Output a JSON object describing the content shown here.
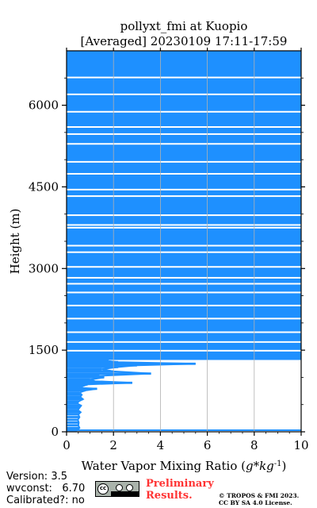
{
  "title_line1": "pollyxt_fmi at Kuopio",
  "title_line2": "[Averaged] 20230109 17:11-17:59",
  "footer": {
    "version": "Version: 3.5",
    "wvconst": "wvconst:   6.70",
    "calibrated": "Calibrated?: no",
    "preliminary_line1": "Preliminary",
    "preliminary_line2": "Results.",
    "copyright_line1": "© TROPOS & FMI 2023.",
    "copyright_line2": "CC BY SA 4.0 License.",
    "license_logo_text": "cc"
  },
  "colors": {
    "series": "#1e90ff",
    "grid": "#b0b0b0",
    "axis": "#000000"
  },
  "chart_data": {
    "type": "line",
    "xlabel": "Water Vapor Mixing Ratio ($g*kg^{-1}$)",
    "ylabel": "Height (m)",
    "xlim": [
      0,
      10
    ],
    "ylim": [
      0,
      7000
    ],
    "x_ticks": [
      "0",
      "2",
      "4",
      "6",
      "8",
      "10"
    ],
    "y_ticks": [
      "0",
      "1500",
      "3000",
      "4500",
      "6000"
    ],
    "grid": "x-only",
    "saturated_above_m": 1320,
    "saturated_gaps_m": [
      6510,
      6200,
      5880,
      5600,
      5470,
      5290,
      4960,
      4740,
      4450,
      4330,
      3980,
      3800,
      3750,
      3420,
      3300,
      3030,
      2830,
      2720,
      2560,
      2320,
      2080,
      1830,
      1650,
      1490
    ],
    "profile": [
      [
        0.45,
        30
      ],
      [
        0.55,
        70
      ],
      [
        0.5,
        120
      ],
      [
        0.52,
        170
      ],
      [
        0.48,
        220
      ],
      [
        0.55,
        270
      ],
      [
        0.5,
        320
      ],
      [
        0.6,
        360
      ],
      [
        0.48,
        400
      ],
      [
        0.55,
        440
      ],
      [
        0.62,
        480
      ],
      [
        0.45,
        520
      ],
      [
        0.52,
        560
      ],
      [
        0.7,
        600
      ],
      [
        0.58,
        640
      ],
      [
        0.65,
        680
      ],
      [
        0.55,
        720
      ],
      [
        0.8,
        760
      ],
      [
        1.3,
        790
      ],
      [
        0.5,
        810
      ],
      [
        0.7,
        840
      ],
      [
        0.9,
        870
      ],
      [
        2.8,
        900
      ],
      [
        1.2,
        930
      ],
      [
        1.0,
        960
      ],
      [
        1.6,
        1000
      ],
      [
        1.4,
        1030
      ],
      [
        3.6,
        1070
      ],
      [
        2.0,
        1110
      ],
      [
        1.5,
        1150
      ],
      [
        2.2,
        1190
      ],
      [
        3.0,
        1220
      ],
      [
        5.5,
        1250
      ],
      [
        2.2,
        1280
      ],
      [
        1.8,
        1300
      ]
    ]
  }
}
